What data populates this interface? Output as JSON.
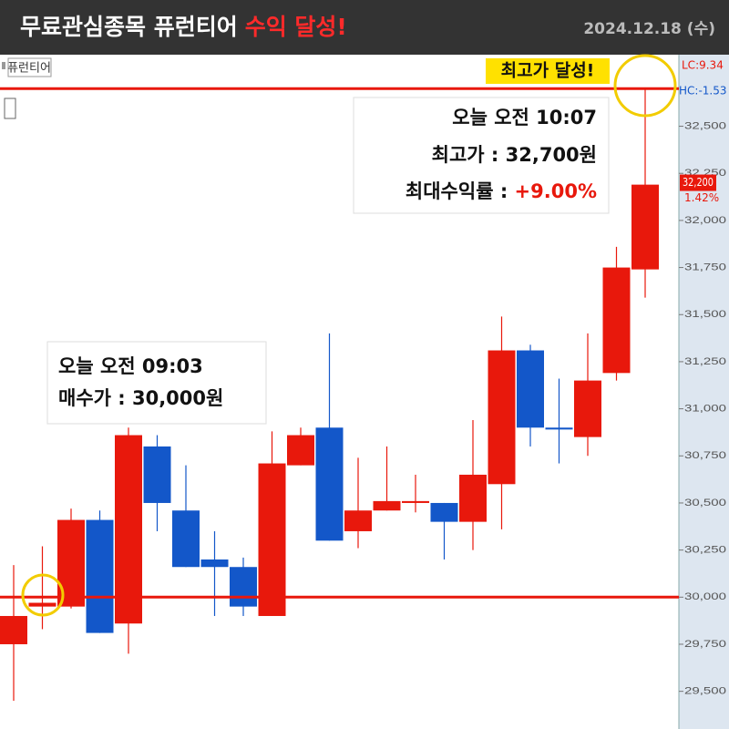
{
  "header": {
    "title": "무료관심종목 퓨런티어",
    "highlight": "수익 달성!",
    "date": "2024.12.18 (수)"
  },
  "chart_data": {
    "type": "candlestick",
    "stock_label": "퓨런티어",
    "up_color": "#e8180c",
    "down_color": "#1357c9",
    "open": [
      29750,
      29950,
      29950,
      30410,
      29860,
      30800,
      30460,
      30200,
      30160,
      29900,
      30700,
      30900,
      30350,
      30460,
      30500,
      30500,
      30400,
      30600,
      31310,
      30900,
      30850,
      31190,
      31740
    ],
    "high": [
      30170,
      30270,
      30470,
      30460,
      30900,
      30860,
      30700,
      30350,
      30210,
      30880,
      30900,
      31400,
      30740,
      30800,
      30650,
      30500,
      30940,
      31490,
      31340,
      31160,
      31400,
      31860,
      32700
    ],
    "low": [
      29450,
      29830,
      29940,
      29810,
      29700,
      30350,
      30160,
      29900,
      29900,
      29900,
      30700,
      30300,
      30260,
      30460,
      30450,
      30200,
      30250,
      30360,
      30800,
      30710,
      30750,
      31150,
      31590
    ],
    "close": [
      29900,
      29970,
      30410,
      29810,
      30860,
      30500,
      30160,
      30160,
      29950,
      30710,
      30860,
      30300,
      30460,
      30510,
      30510,
      30400,
      30650,
      31310,
      30900,
      30890,
      31150,
      31750,
      32190
    ],
    "ylim": [
      29300,
      32880
    ],
    "yticks": [
      {
        "value": 29500,
        "label": "29,500"
      },
      {
        "value": 29750,
        "label": "29,750"
      },
      {
        "value": 30000,
        "label": "30,000"
      },
      {
        "value": 30250,
        "label": "30,250"
      },
      {
        "value": 30500,
        "label": "30,500"
      },
      {
        "value": 30750,
        "label": "30,750"
      },
      {
        "value": 31000,
        "label": "31,000"
      },
      {
        "value": 31250,
        "label": "31,250"
      },
      {
        "value": 31500,
        "label": "31,500"
      },
      {
        "value": 31750,
        "label": "31,750"
      },
      {
        "value": 32000,
        "label": "32,000"
      },
      {
        "value": 32250,
        "label": "32,250"
      },
      {
        "value": 32500,
        "label": "32,500"
      }
    ],
    "reference_lines": [
      {
        "value": 30000,
        "color": "#e8180c"
      },
      {
        "value": 32700,
        "color": "#e8180c"
      }
    ],
    "current_price": {
      "value": 32200,
      "label": "32,200"
    },
    "change_label": "1.42%",
    "lc_label": "LC:9.34",
    "hc_label": "HC:-1.53",
    "peak_badge": "최고가 달성!",
    "annotations": [
      {
        "lines": [
          "오늘 오전 10:07",
          "최고가 : 32,700원",
          "최대수익률 : "
        ],
        "highlight": "+9.00%"
      },
      {
        "lines": [
          "오늘 오전 09:03",
          "매수가 : 30,000원"
        ]
      }
    ]
  }
}
